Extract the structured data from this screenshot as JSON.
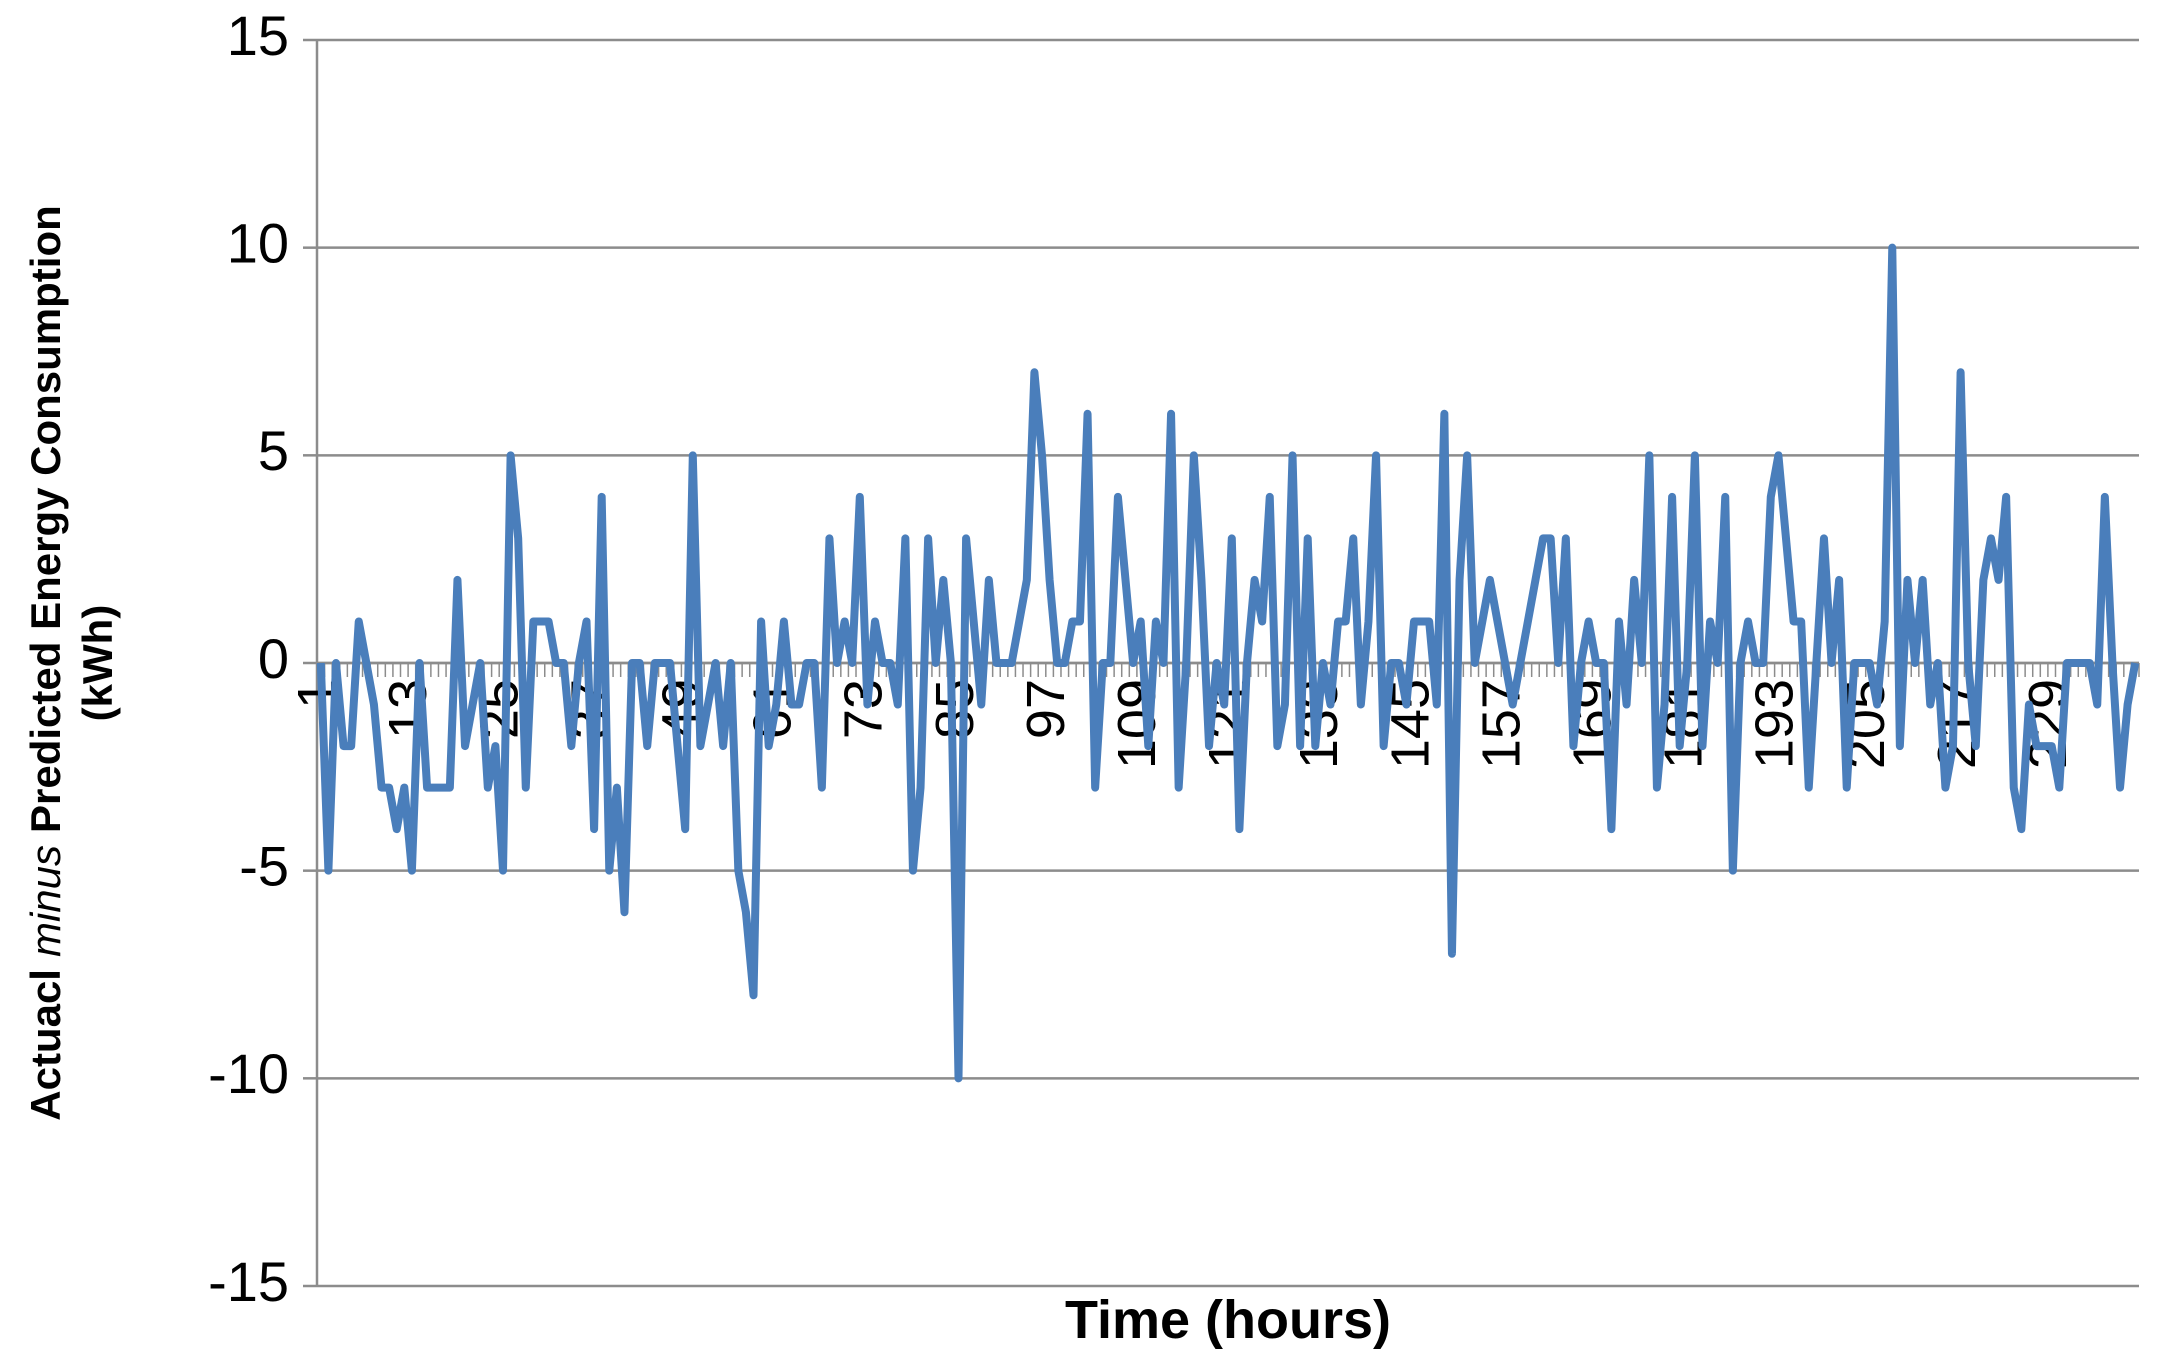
{
  "chart_data": {
    "type": "line",
    "xlabel": "Time (hours)",
    "ylabel": [
      "Actuacl",
      "minus",
      "Predicted Energy Consumption",
      "(kWh)"
    ],
    "categories": [
      "1",
      null,
      null,
      null,
      null,
      null,
      null,
      null,
      null,
      null,
      null,
      null,
      "13",
      null,
      null,
      null,
      null,
      null,
      null,
      null,
      null,
      null,
      null,
      null,
      "25",
      null,
      null,
      null,
      null,
      null,
      null,
      null,
      null,
      null,
      null,
      null,
      "37",
      null,
      null,
      null,
      null,
      null,
      null,
      null,
      null,
      null,
      null,
      null,
      "49",
      null,
      null,
      null,
      null,
      null,
      null,
      null,
      null,
      null,
      null,
      null,
      "61",
      null,
      null,
      null,
      null,
      null,
      null,
      null,
      null,
      null,
      null,
      null,
      "73",
      null,
      null,
      null,
      null,
      null,
      null,
      null,
      null,
      null,
      null,
      null,
      "85",
      null,
      null,
      null,
      null,
      null,
      null,
      null,
      null,
      null,
      null,
      null,
      "97",
      null,
      null,
      null,
      null,
      null,
      null,
      null,
      null,
      null,
      null,
      null,
      "109",
      null,
      null,
      null,
      null,
      null,
      null,
      null,
      null,
      null,
      null,
      null,
      "121",
      null,
      null,
      null,
      null,
      null,
      null,
      null,
      null,
      null,
      null,
      null,
      "133",
      null,
      null,
      null,
      null,
      null,
      null,
      null,
      null,
      null,
      null,
      null,
      "145",
      null,
      null,
      null,
      null,
      null,
      null,
      null,
      null,
      null,
      null,
      null,
      "157",
      null,
      null,
      null,
      null,
      null,
      null,
      null,
      null,
      null,
      null,
      null,
      "169",
      null,
      null,
      null,
      null,
      null,
      null,
      null,
      null,
      null,
      null,
      null,
      "181",
      null,
      null,
      null,
      null,
      null,
      null,
      null,
      null,
      null,
      null,
      null,
      "193",
      null,
      null,
      null,
      null,
      null,
      null,
      null,
      null,
      null,
      null,
      null,
      "205",
      null,
      null,
      null,
      null,
      null,
      null,
      null,
      null,
      null,
      null,
      null,
      "217",
      null,
      null,
      null,
      null,
      null,
      null,
      null,
      null,
      null,
      null,
      null,
      "229",
      null,
      null,
      null,
      null,
      null,
      null,
      null,
      null,
      null,
      null,
      null
    ],
    "values": [
      0,
      -5,
      0,
      -2,
      -2,
      1,
      0,
      -1,
      -3,
      -3,
      -4,
      -3,
      -5,
      0,
      -3,
      -3,
      -3,
      -3,
      2,
      -2,
      -1,
      0,
      -3,
      -2,
      -5,
      5,
      3,
      -3,
      1,
      1,
      1,
      0,
      0,
      -2,
      0,
      1,
      -4,
      4,
      -5,
      -3,
      -6,
      0,
      0,
      -2,
      0,
      0,
      0,
      -2,
      -4,
      5,
      -2,
      -1,
      0,
      -2,
      0,
      -5,
      -6,
      -8,
      1,
      -2,
      -1,
      1,
      -1,
      -1,
      0,
      0,
      -3,
      3,
      0,
      1,
      0,
      4,
      -1,
      1,
      0,
      0,
      -1,
      3,
      -5,
      -3,
      3,
      0,
      2,
      0,
      -10,
      3,
      1,
      -1,
      2,
      0,
      0,
      0,
      1,
      2,
      7,
      5,
      2,
      0,
      0,
      1,
      1,
      6,
      -3,
      0,
      0,
      4,
      2,
      0,
      1,
      -2,
      1,
      0,
      6,
      -3,
      0,
      5,
      2,
      -2,
      0,
      -1,
      3,
      -4,
      0,
      2,
      1,
      4,
      -2,
      -1,
      5,
      -2,
      3,
      -2,
      0,
      -1,
      1,
      1,
      3,
      -1,
      1,
      5,
      -2,
      0,
      0,
      -1,
      1,
      1,
      1,
      -1,
      6,
      -7,
      2,
      5,
      0,
      1,
      2,
      1,
      0,
      -1,
      0,
      1,
      2,
      3,
      3,
      0,
      3,
      -2,
      0,
      1,
      0,
      0,
      -4,
      1,
      -1,
      2,
      0,
      5,
      -3,
      -1,
      4,
      -2,
      0,
      5,
      -2,
      1,
      0,
      4,
      -5,
      0,
      1,
      0,
      0,
      4,
      5,
      3,
      1,
      1,
      -3,
      0,
      3,
      0,
      2,
      -3,
      0,
      0,
      0,
      -1,
      1,
      10,
      -2,
      2,
      0,
      2,
      -1,
      0,
      -3,
      -2,
      7,
      0,
      -2,
      2,
      3,
      2,
      4,
      -3,
      -4,
      -1,
      -2,
      -2,
      -2,
      -3,
      0,
      0,
      0,
      0,
      -1,
      4,
      0,
      -3,
      -1,
      0
    ],
    "color": "#4a7ebb",
    "ylim": [
      -15,
      15
    ],
    "yticks": [
      -15,
      -10,
      -5,
      0,
      5,
      10,
      15
    ],
    "grid": true
  }
}
